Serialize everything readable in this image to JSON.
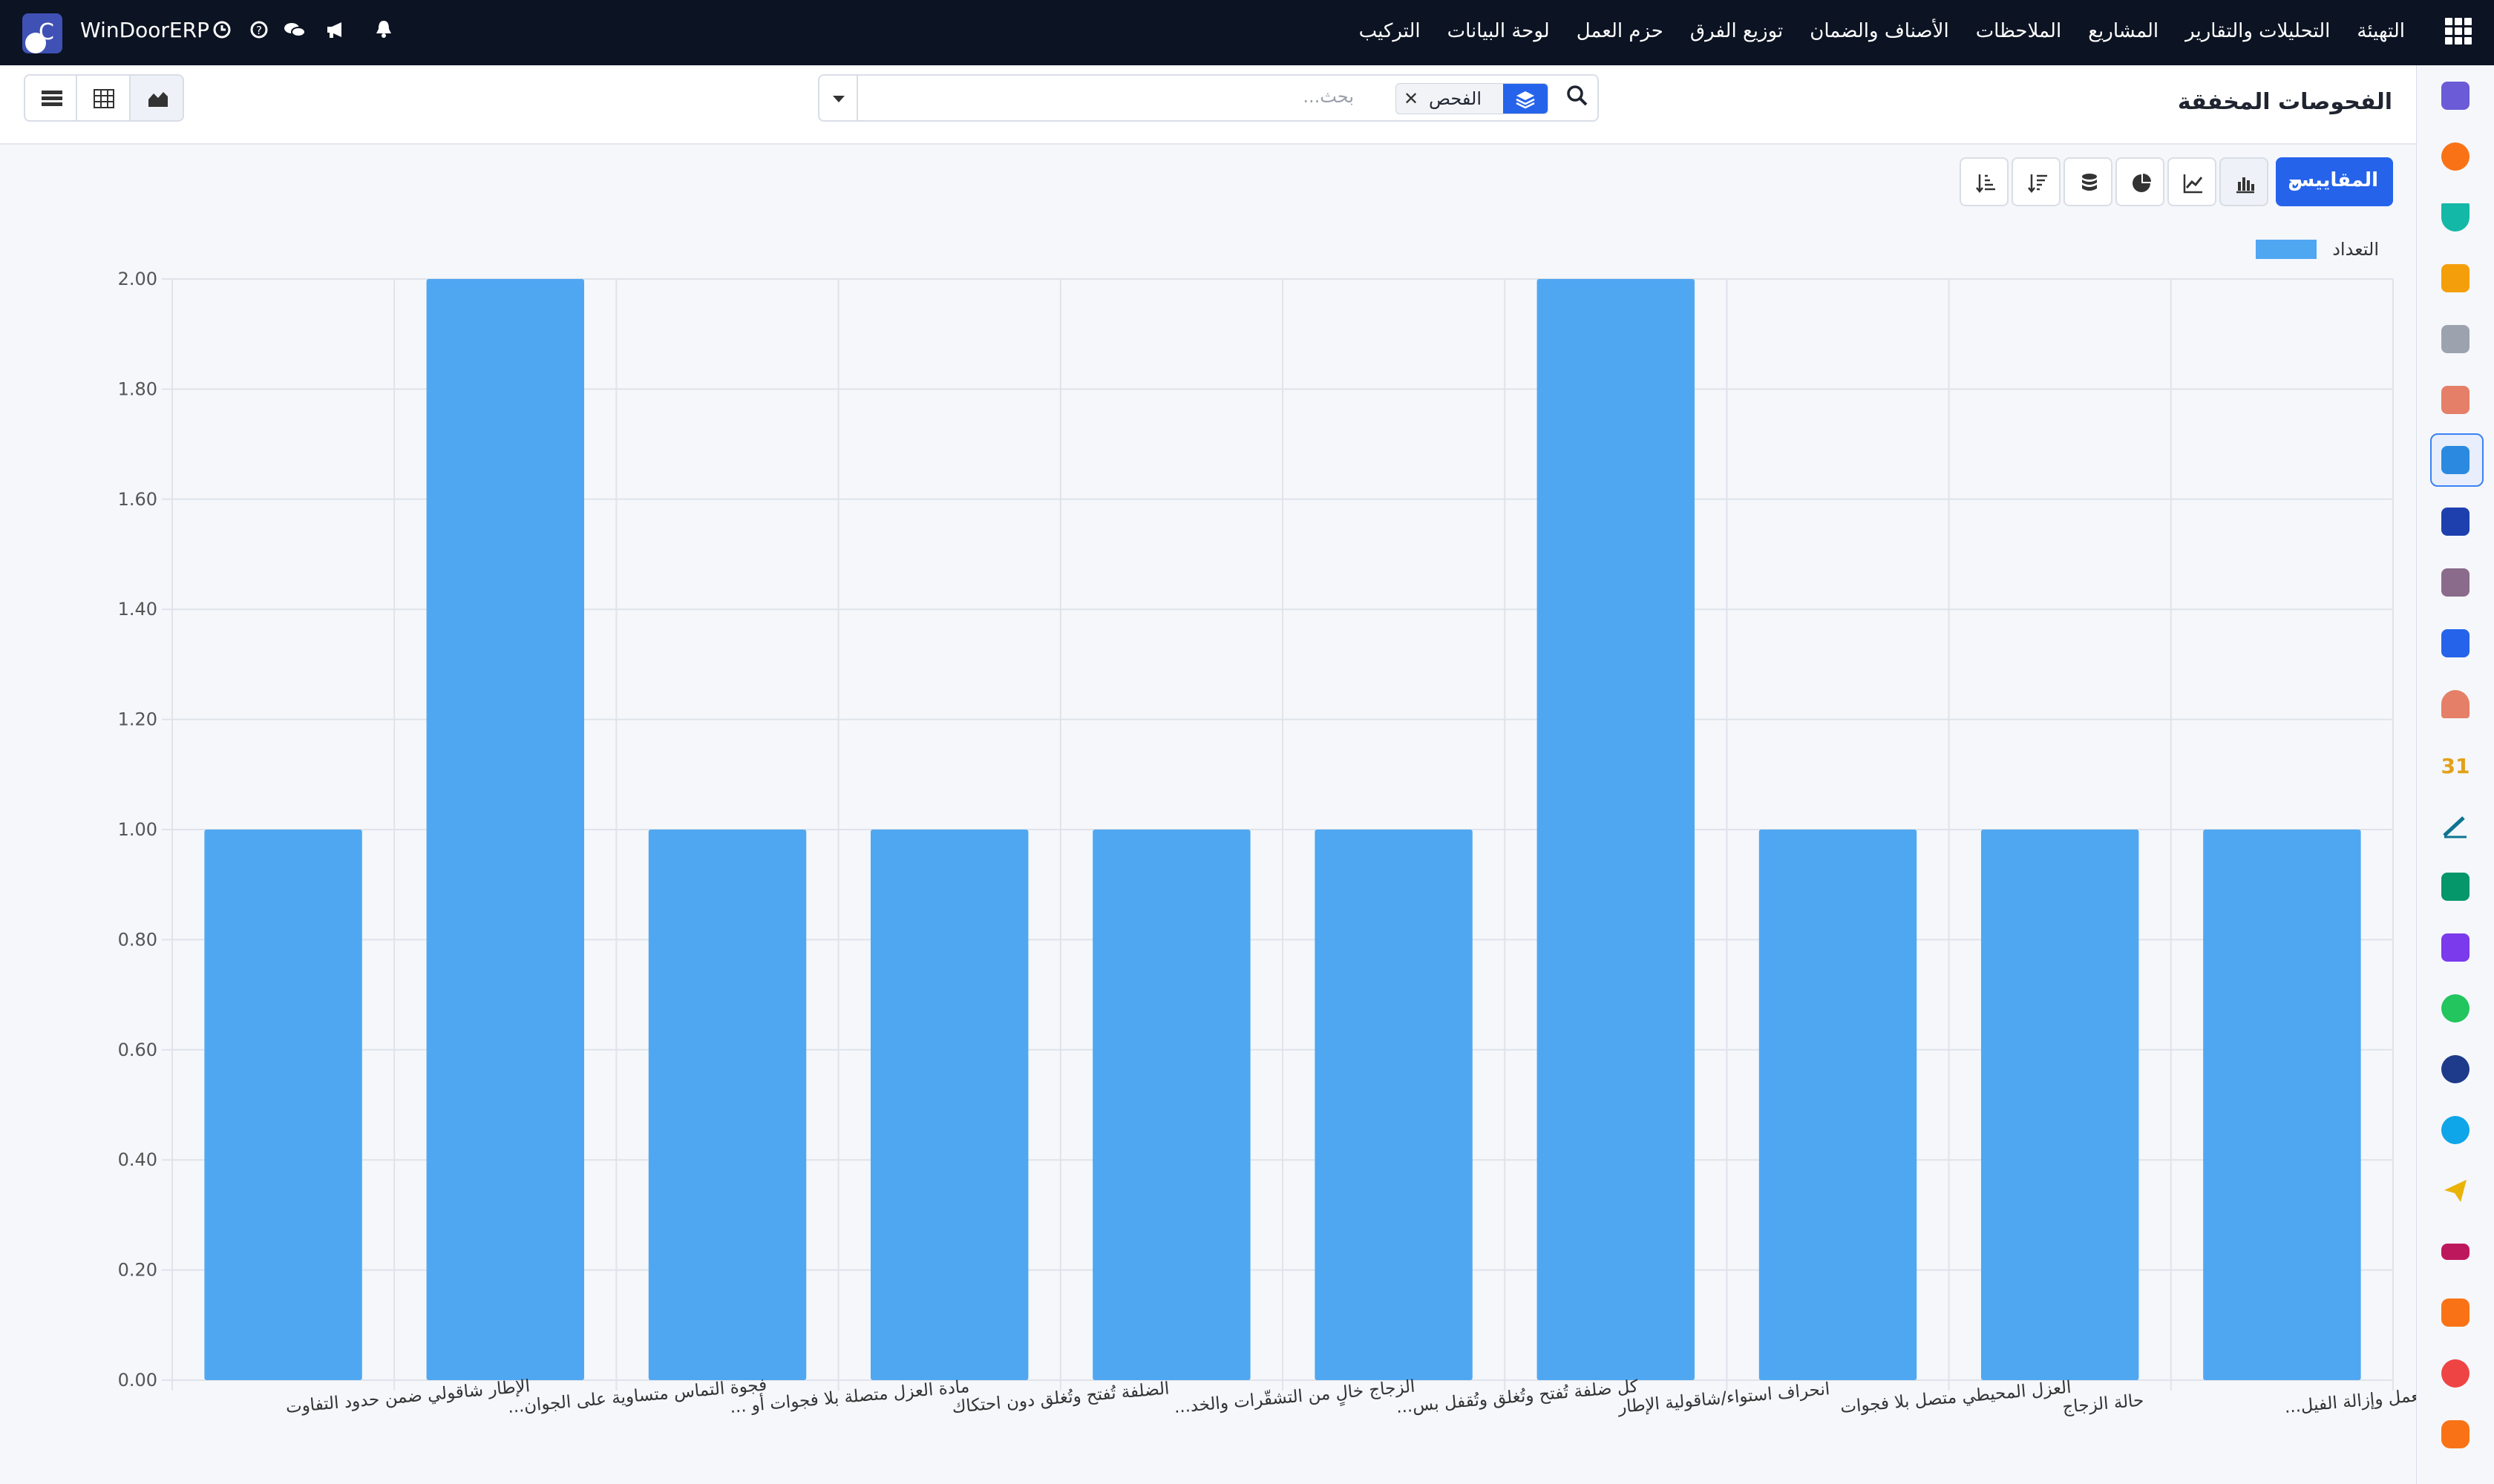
{
  "topbar": {
    "app_name": "WinDoorERP",
    "menu": [
      "التركيب",
      "لوحة البيانات",
      "حزم العمل",
      "توزيع الفرق",
      "الأصناف والضمان",
      "الملاحظات",
      "المشاريع",
      "التحليلات والتقارير",
      "التهيئة"
    ],
    "icons": [
      "apps-grid-icon",
      "bell-icon",
      "megaphone-icon",
      "chat-icon",
      "help-icon",
      "clock-icon"
    ]
  },
  "control": {
    "title": "الفحوصات المخفقة",
    "search_placeholder": "بحث...",
    "facet_label": "الفحص"
  },
  "toolbar": {
    "measures_label": "المقاييس"
  },
  "chart_data": {
    "type": "bar",
    "categories": [
      "الإطار شاقولي ضمن حدود التفاوت",
      "فجوة التماس متساوية على الجوان...",
      "مادة العزل متصلة بلا فجوات أو ...",
      "الضلفة تُفتح وتُغلق دون احتكاك",
      "الزجاج خالٍ من التشقّرات والخد...",
      "كل ضلفة تُفتح وتُغلق وتُقفل بس...",
      "انحراف استواء/شاقولية الإطار",
      "العزل المحيطي متصل بلا فجوات",
      "حالة الزجاج",
      "تنظيف منطقة العمل وإزالة الفيل..."
    ],
    "series": [
      {
        "name": "التعداد",
        "values": [
          1,
          2,
          1,
          1,
          1,
          1,
          2,
          1,
          1,
          1
        ]
      }
    ],
    "y_ticks": [
      "0.00",
      "0.20",
      "0.40",
      "0.60",
      "0.80",
      "1.00",
      "1.20",
      "1.40",
      "1.60",
      "1.80",
      "2.00"
    ],
    "ylim": [
      0,
      2
    ],
    "grid": true,
    "legend_position": "top-right",
    "bar_color": "#4fa7f2"
  }
}
